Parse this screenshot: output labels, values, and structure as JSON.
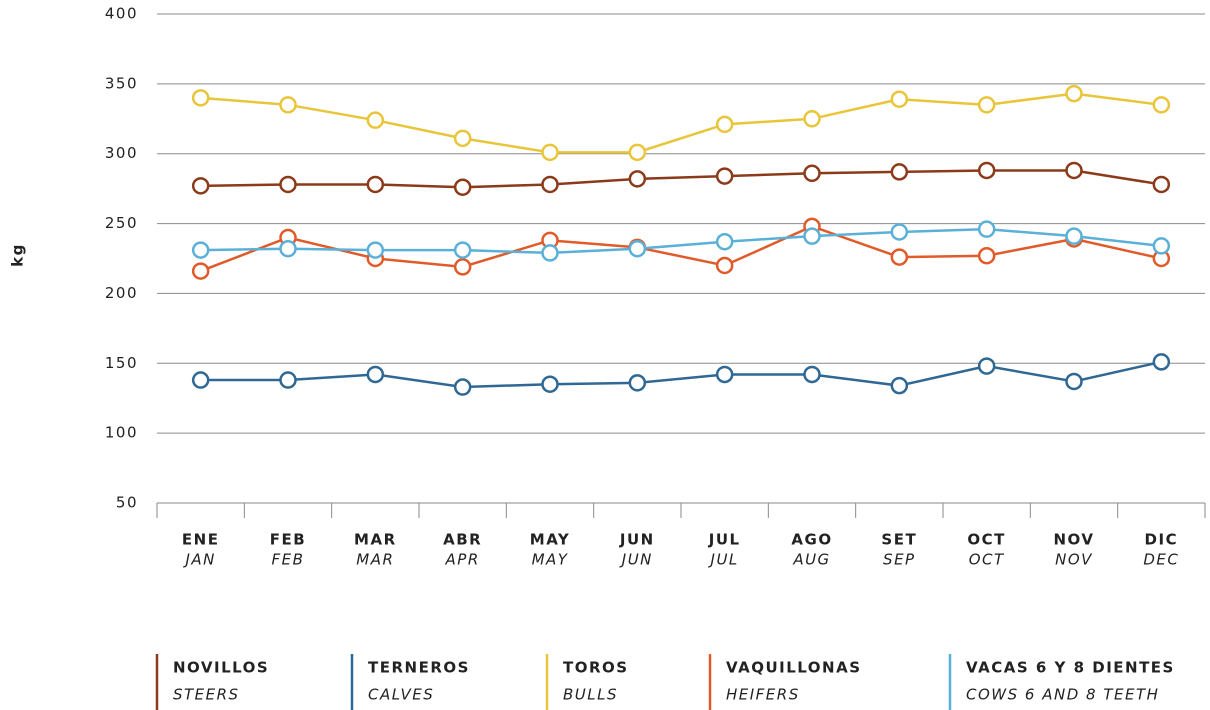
{
  "chart_data": {
    "type": "line",
    "y_label": "kg",
    "categories": [
      "ENE",
      "FEB",
      "MAR",
      "ABR",
      "MAY",
      "JUN",
      "JUL",
      "AGO",
      "SET",
      "OCT",
      "NOV",
      "DIC"
    ],
    "categories_en": [
      "JAN",
      "FEB",
      "MAR",
      "APR",
      "MAY",
      "JUN",
      "JUL",
      "AUG",
      "SEP",
      "OCT",
      "NOV",
      "DEC"
    ],
    "ylim": [
      50,
      400
    ],
    "yticks": [
      50,
      100,
      150,
      200,
      250,
      300,
      350,
      400
    ],
    "grid": true,
    "series": [
      {
        "name": "NOVILLOS",
        "name_en": "STEERS",
        "color": "#8b3a1a",
        "values": [
          277,
          278,
          278,
          276,
          278,
          282,
          284,
          286,
          287,
          288,
          288,
          278
        ]
      },
      {
        "name": "TERNEROS",
        "name_en": "CALVES",
        "color": "#2f6894",
        "values": [
          138,
          138,
          142,
          133,
          135,
          136,
          142,
          142,
          134,
          148,
          137,
          151
        ]
      },
      {
        "name": "TOROS",
        "name_en": "BULLS",
        "color": "#e9c53a",
        "values": [
          340,
          335,
          324,
          311,
          301,
          301,
          321,
          325,
          339,
          335,
          343,
          335
        ]
      },
      {
        "name": "VAQUILLONAS",
        "name_en": "HEIFERS",
        "color": "#e05a2a",
        "values": [
          216,
          240,
          225,
          219,
          238,
          233,
          220,
          248,
          226,
          227,
          239,
          225
        ]
      },
      {
        "name": "VACAS 6 Y 8 DIENTES",
        "name_en": "COWS 6 AND 8 TEETH",
        "color": "#5ab0d6",
        "values": [
          231,
          232,
          231,
          231,
          229,
          232,
          237,
          241,
          244,
          246,
          241,
          234
        ]
      }
    ]
  }
}
